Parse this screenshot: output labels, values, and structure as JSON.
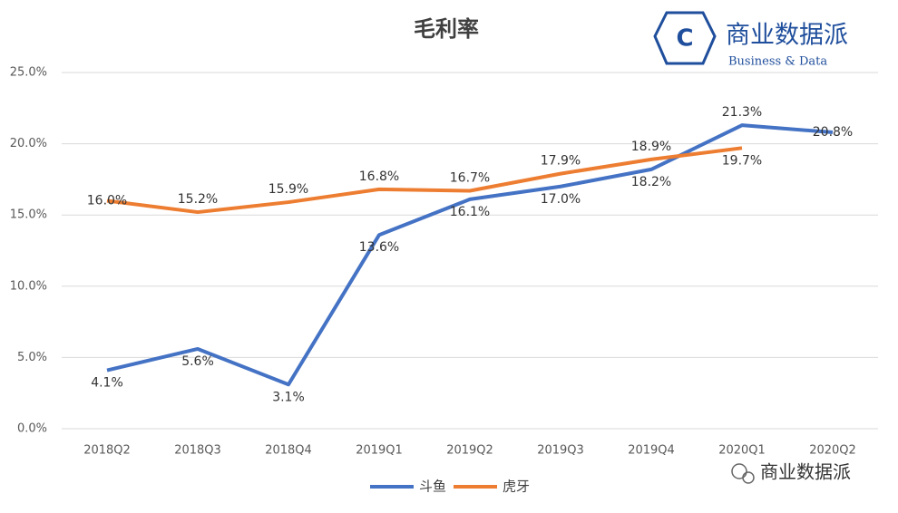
{
  "chart_data": {
    "type": "line",
    "title": "毛利率",
    "categories": [
      "2018Q2",
      "2018Q3",
      "2018Q4",
      "2019Q1",
      "2019Q2",
      "2019Q3",
      "2019Q4",
      "2020Q1",
      "2020Q2"
    ],
    "series": [
      {
        "name": "斗鱼",
        "color": "#4472c4",
        "values": [
          4.1,
          5.6,
          3.1,
          13.6,
          16.1,
          17.0,
          18.2,
          21.3,
          20.8
        ],
        "value_labels": [
          "4.1%",
          "5.6%",
          "3.1%",
          "13.6%",
          "16.1%",
          "17.0%",
          "18.2%",
          "21.3%",
          "20.8%"
        ]
      },
      {
        "name": "虎牙",
        "color": "#ed7d31",
        "values": [
          16.0,
          15.2,
          15.9,
          16.8,
          16.7,
          17.9,
          18.9,
          19.7,
          null
        ],
        "value_labels": [
          "16.0%",
          "15.2%",
          "15.9%",
          "16.8%",
          "16.7%",
          "17.9%",
          "18.9%",
          "19.7%",
          null
        ]
      }
    ],
    "ylim": [
      0,
      25
    ],
    "yticks": [
      {
        "value": 0,
        "label": "0.0%"
      },
      {
        "value": 5,
        "label": "5.0%"
      },
      {
        "value": 10,
        "label": "10.0%"
      },
      {
        "value": 15,
        "label": "15.0%"
      },
      {
        "value": 20,
        "label": "20.0%"
      },
      {
        "value": 25,
        "label": "25.0%"
      }
    ],
    "grid": true,
    "legend": "bottom"
  },
  "logo": {
    "icon": "C",
    "name": "商业数据派",
    "subtitle": "Business & Data"
  },
  "watermark": "商业数据派"
}
